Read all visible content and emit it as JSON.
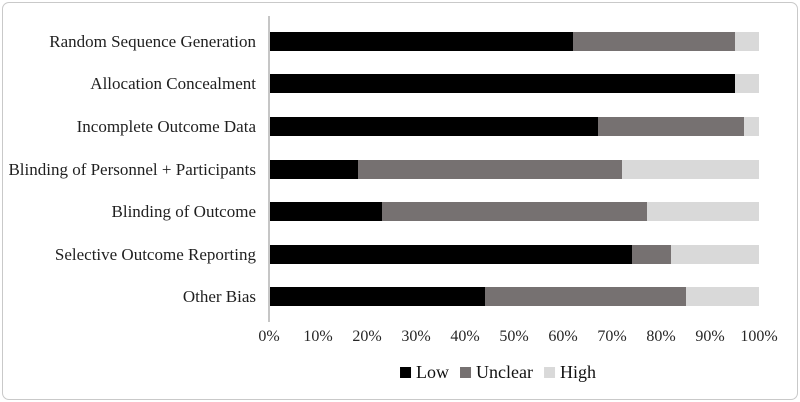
{
  "figure": {
    "background": "#ffffff",
    "frame_border_color": "#c9c9c9"
  },
  "chart_data": {
    "type": "bar",
    "orientation": "horizontal",
    "stacked": true,
    "units": "percent",
    "title": "",
    "xlabel": "",
    "ylabel": "",
    "xlim": [
      0,
      100
    ],
    "grid": false,
    "legend_position": "bottom",
    "categories": [
      "Random Sequence Generation",
      "Allocation Concealment",
      "Incomplete Outcome Data",
      "Blinding of Personnel + Participants",
      "Blinding of Outcome",
      "Selective Outcome Reporting",
      "Other Bias"
    ],
    "series": [
      {
        "name": "Low",
        "color": "#000000",
        "values": [
          62,
          95,
          67,
          18,
          23,
          74,
          44
        ]
      },
      {
        "name": "Unclear",
        "color": "#767171",
        "values": [
          33,
          0,
          30,
          54,
          54,
          8,
          41
        ]
      },
      {
        "name": "High",
        "color": "#d9d9d9",
        "values": [
          5,
          5,
          3,
          28,
          23,
          18,
          15
        ]
      }
    ],
    "x_tick_labels": [
      "0%",
      "10%",
      "20%",
      "30%",
      "40%",
      "50%",
      "60%",
      "70%",
      "80%",
      "90%",
      "100%"
    ],
    "axis_line_color": "#c6c6c6",
    "label_text_color": "#1f1f1f",
    "tick_text_color": "#262626"
  }
}
